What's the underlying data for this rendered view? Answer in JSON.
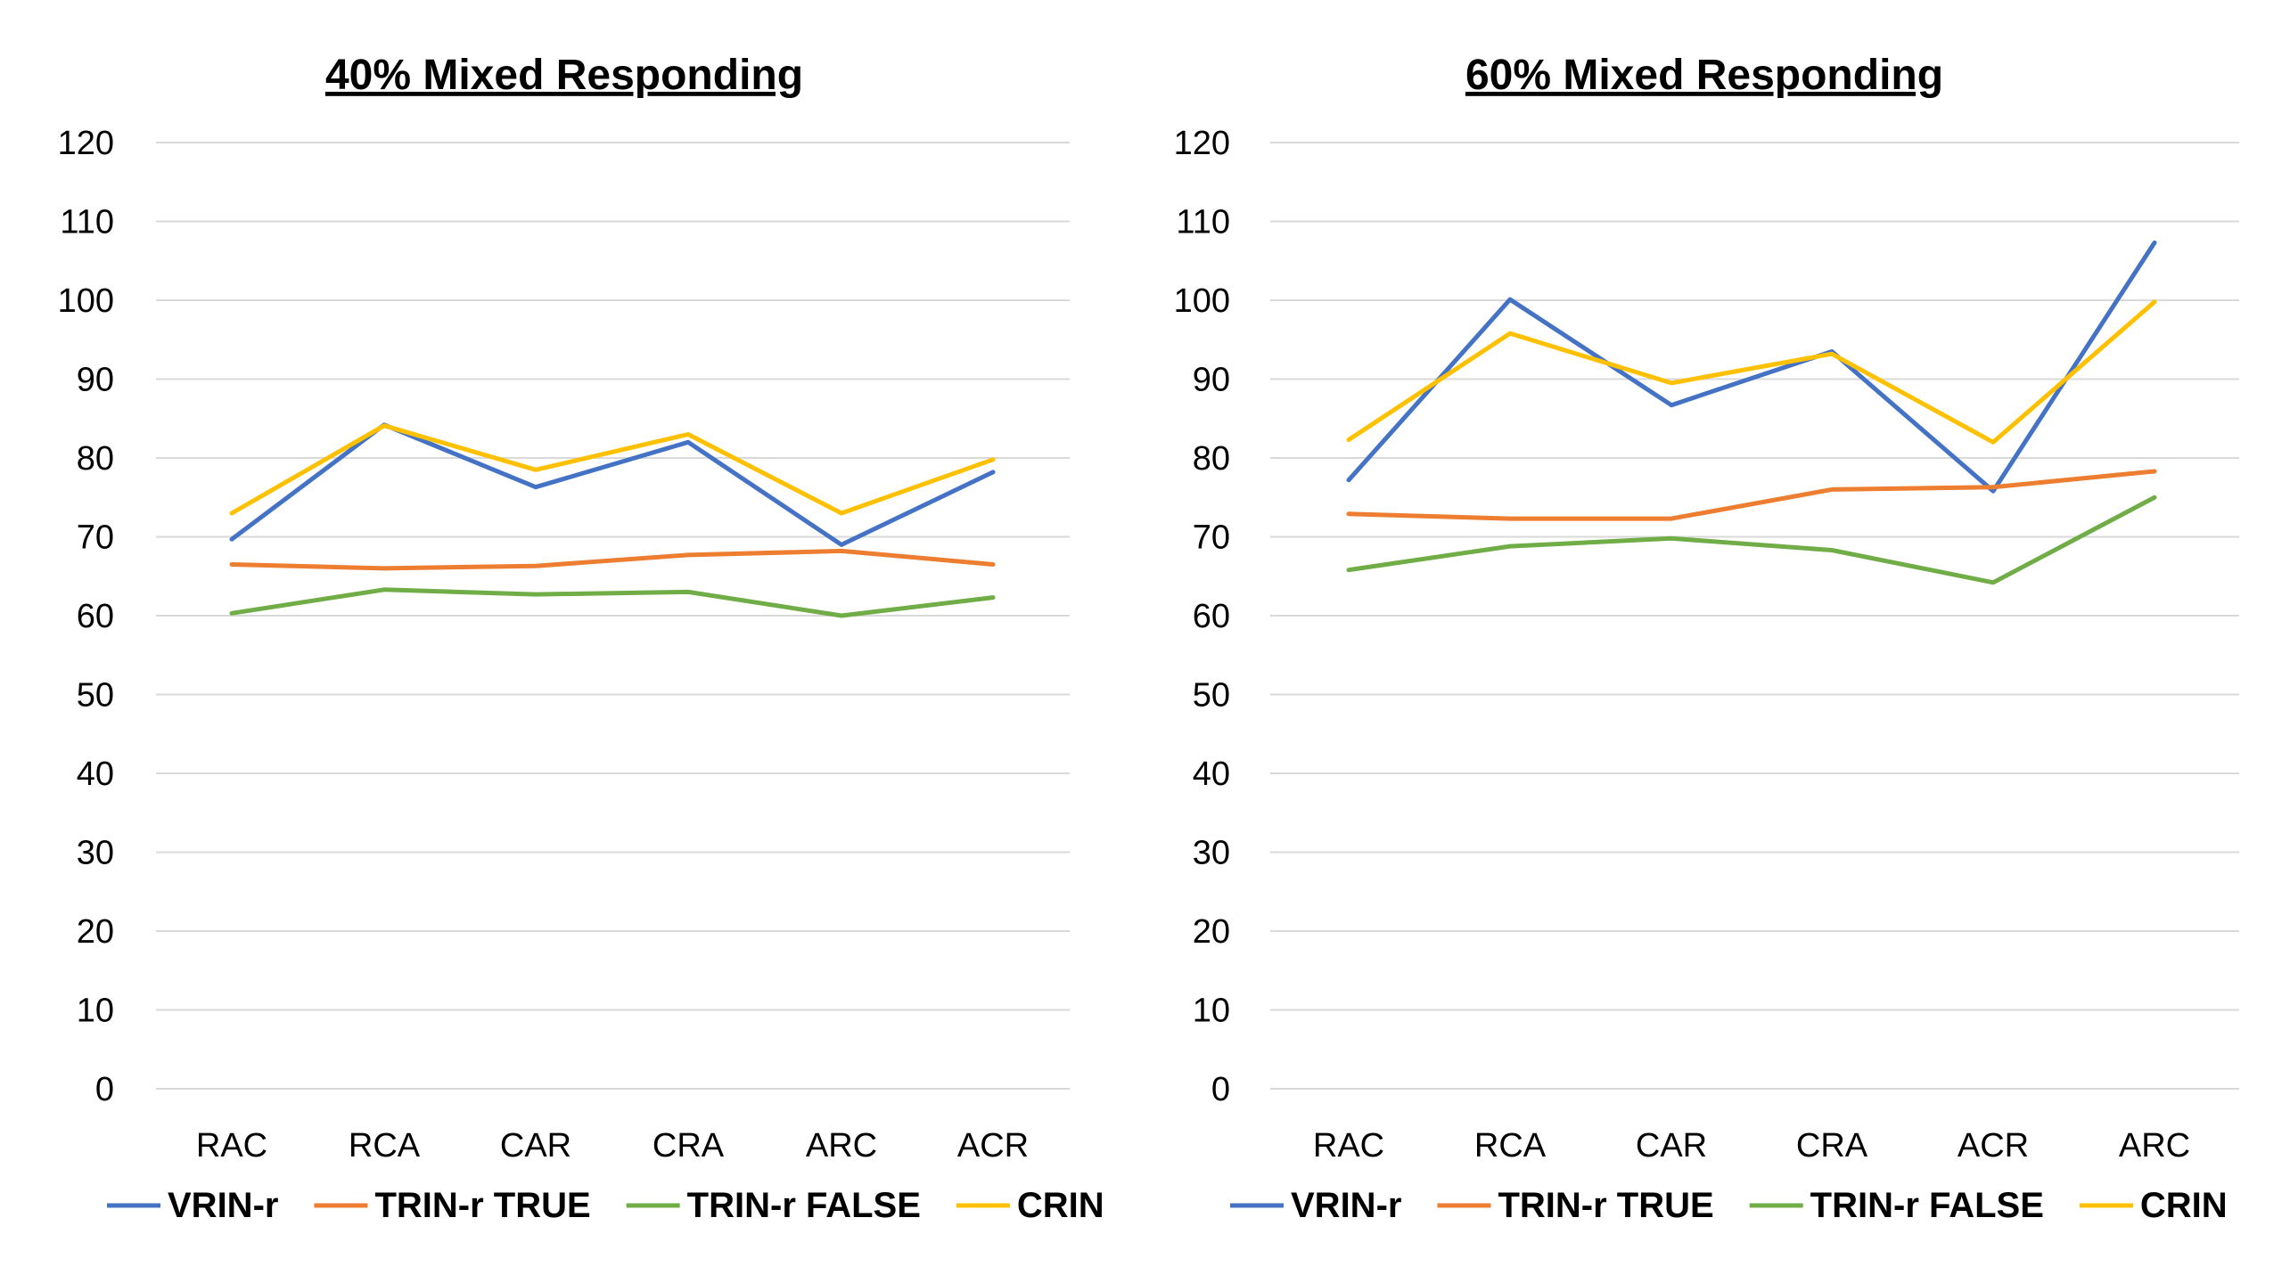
{
  "chart_data": [
    {
      "type": "line",
      "title": "40% Mixed Responding",
      "categories": [
        "RAC",
        "RCA",
        "CAR",
        "CRA",
        "ARC",
        "ACR"
      ],
      "ylim": [
        0,
        120
      ],
      "yticks": [
        0,
        10,
        20,
        30,
        40,
        50,
        60,
        70,
        80,
        90,
        100,
        110,
        120
      ],
      "grid": true,
      "legend_position": "bottom",
      "series": [
        {
          "name": "VRIN-r",
          "color": "#4472c4",
          "values": [
            69.7,
            84.2,
            76.3,
            82.0,
            69.0,
            78.2
          ]
        },
        {
          "name": "TRIN-r TRUE",
          "color": "#ed7d31",
          "values": [
            66.5,
            66.0,
            66.3,
            67.7,
            68.2,
            66.5
          ]
        },
        {
          "name": "TRIN-r FALSE",
          "color": "#70ad47",
          "values": [
            60.3,
            63.3,
            62.7,
            63.0,
            60.0,
            62.3
          ]
        },
        {
          "name": "CRIN",
          "color": "#ffc000",
          "values": [
            73.0,
            84.1,
            78.5,
            83.0,
            73.0,
            79.8
          ]
        }
      ]
    },
    {
      "type": "line",
      "title": "60% Mixed Responding",
      "categories": [
        "RAC",
        "RCA",
        "CAR",
        "CRA",
        "ACR",
        "ARC"
      ],
      "ylim": [
        0,
        120
      ],
      "yticks": [
        0,
        10,
        20,
        30,
        40,
        50,
        60,
        70,
        80,
        90,
        100,
        110,
        120
      ],
      "grid": true,
      "legend_position": "bottom",
      "series": [
        {
          "name": "VRIN-r",
          "color": "#4472c4",
          "values": [
            77.2,
            100.1,
            86.7,
            93.5,
            75.8,
            107.3
          ]
        },
        {
          "name": "TRIN-r TRUE",
          "color": "#ed7d31",
          "values": [
            72.9,
            72.3,
            72.3,
            76.0,
            76.3,
            78.3
          ]
        },
        {
          "name": "TRIN-r FALSE",
          "color": "#70ad47",
          "values": [
            65.8,
            68.8,
            69.8,
            68.3,
            64.2,
            75.0
          ]
        },
        {
          "name": "CRIN",
          "color": "#ffc000",
          "values": [
            82.3,
            95.8,
            89.5,
            93.2,
            82.0,
            99.8
          ]
        }
      ]
    }
  ]
}
